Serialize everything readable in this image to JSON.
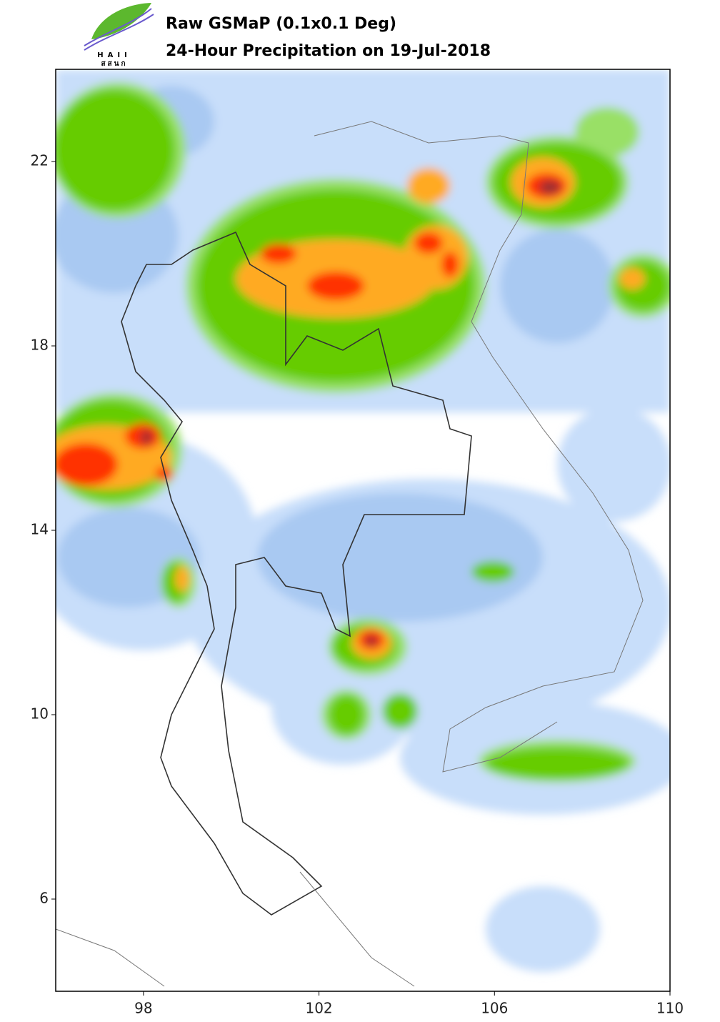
{
  "header": {
    "logo_text": "HAII",
    "logo_text_thai": "สสนก",
    "title": "Raw GSMaP (0.1x0.1 Deg)",
    "subtitle": "24-Hour Precipitation on 19-Jul-2018"
  },
  "map": {
    "xlim": [
      96,
      110
    ],
    "ylim": [
      4,
      24
    ],
    "xticks": [
      98,
      102,
      106,
      110
    ],
    "yticks": [
      6,
      10,
      14,
      18,
      22
    ]
  }
}
